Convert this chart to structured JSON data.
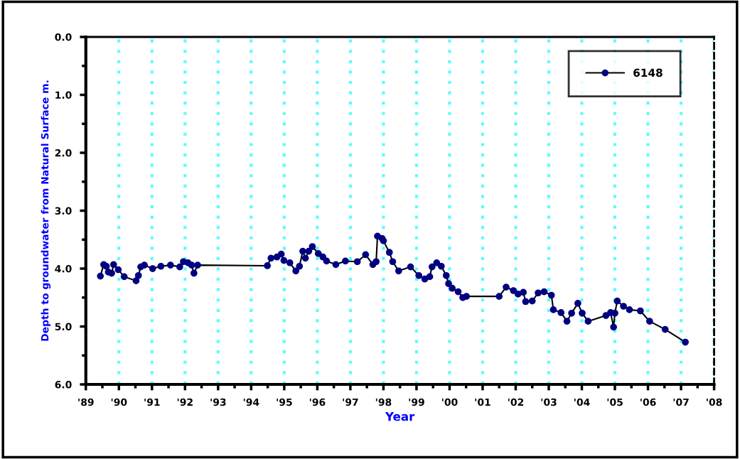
{
  "chart_data": {
    "type": "line",
    "xlabel": "Year",
    "ylabel": "Depth to groundwater from Natural Surface m.",
    "xlim": [
      1989,
      2008
    ],
    "ylim": [
      6.0,
      0.0
    ],
    "xticks": [
      {
        "value": 1989,
        "label": "'89"
      },
      {
        "value": 1990,
        "label": "'90"
      },
      {
        "value": 1991,
        "label": "'91"
      },
      {
        "value": 1992,
        "label": "'92"
      },
      {
        "value": 1993,
        "label": "'93"
      },
      {
        "value": 1994,
        "label": "'94"
      },
      {
        "value": 1995,
        "label": "'95"
      },
      {
        "value": 1996,
        "label": "'96"
      },
      {
        "value": 1997,
        "label": "'97"
      },
      {
        "value": 1998,
        "label": "'98"
      },
      {
        "value": 1999,
        "label": "'99"
      },
      {
        "value": 2000,
        "label": "'00"
      },
      {
        "value": 2001,
        "label": "'01"
      },
      {
        "value": 2002,
        "label": "'02"
      },
      {
        "value": 2003,
        "label": "'03"
      },
      {
        "value": 2004,
        "label": "'04"
      },
      {
        "value": 2005,
        "label": "'05"
      },
      {
        "value": 2006,
        "label": "'06"
      },
      {
        "value": 2007,
        "label": "'07"
      },
      {
        "value": 2008,
        "label": "'08"
      }
    ],
    "yticks": [
      {
        "value": 0,
        "label": "0.0"
      },
      {
        "value": 1,
        "label": "1.0"
      },
      {
        "value": 2,
        "label": "2.0"
      },
      {
        "value": 3,
        "label": "3.0"
      },
      {
        "value": 4,
        "label": "4.0"
      },
      {
        "value": 5,
        "label": "5.0"
      },
      {
        "value": 6,
        "label": "6.0"
      }
    ],
    "grid": "x",
    "legend": "top right",
    "marker": "circle",
    "line_style": "solid",
    "series": [
      {
        "name": "6148",
        "color": "#000080",
        "x": [
          1989.44,
          1989.54,
          1989.62,
          1989.68,
          1989.78,
          1989.84,
          1989.98,
          1990.16,
          1990.52,
          1990.59,
          1990.66,
          1990.77,
          1991.02,
          1991.27,
          1991.56,
          1991.84,
          1991.95,
          1992.09,
          1992.2,
          1992.27,
          1992.38,
          1994.49,
          1994.6,
          1994.78,
          1994.91,
          1994.99,
          1995.17,
          1995.35,
          1995.46,
          1995.56,
          1995.64,
          1995.74,
          1995.85,
          1996.03,
          1996.17,
          1996.28,
          1996.56,
          1996.85,
          1997.21,
          1997.46,
          1997.68,
          1997.78,
          1997.82,
          1997.96,
          1998.0,
          1998.18,
          1998.28,
          1998.46,
          1998.82,
          1999.07,
          1999.25,
          1999.4,
          1999.47,
          1999.61,
          1999.75,
          1999.9,
          1999.97,
          2000.08,
          2000.26,
          2000.4,
          2000.51,
          2001.5,
          2001.71,
          2001.93,
          2002.07,
          2002.23,
          2002.3,
          2002.5,
          2002.68,
          2002.86,
          2003.08,
          2003.14,
          2003.37,
          2003.55,
          2003.69,
          2003.88,
          2004.01,
          2004.19,
          2004.73,
          2004.87,
          2004.96,
          2005.0,
          2005.07,
          2005.26,
          2005.44,
          2005.77,
          2006.05,
          2006.52,
          2007.13
        ],
        "values": [
          4.13,
          3.93,
          3.96,
          4.06,
          4.08,
          3.93,
          4.02,
          4.14,
          4.21,
          4.12,
          3.97,
          3.94,
          4.0,
          3.96,
          3.94,
          3.97,
          3.88,
          3.9,
          3.94,
          4.08,
          3.94,
          3.95,
          3.82,
          3.8,
          3.75,
          3.86,
          3.9,
          4.04,
          3.96,
          3.7,
          3.82,
          3.7,
          3.62,
          3.74,
          3.8,
          3.87,
          3.93,
          3.87,
          3.88,
          3.76,
          3.93,
          3.88,
          3.44,
          3.48,
          3.52,
          3.72,
          3.88,
          4.04,
          3.97,
          4.12,
          4.18,
          4.14,
          3.97,
          3.9,
          3.96,
          4.12,
          4.26,
          4.34,
          4.4,
          4.5,
          4.48,
          4.48,
          4.32,
          4.38,
          4.44,
          4.41,
          4.57,
          4.56,
          4.42,
          4.4,
          4.46,
          4.71,
          4.76,
          4.91,
          4.77,
          4.6,
          4.77,
          4.91,
          4.81,
          4.76,
          5.01,
          4.77,
          4.56,
          4.65,
          4.71,
          4.73,
          4.91,
          5.05,
          5.27
        ]
      }
    ]
  }
}
